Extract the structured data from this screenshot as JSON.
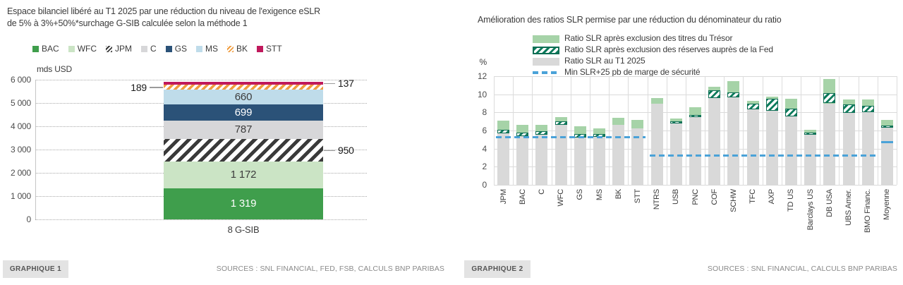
{
  "left_panel": {
    "title_line1": "Espace bilanciel libéré au T1 2025 par une réduction du niveau de l'exigence eSLR",
    "title_line2": "de 5% à 3%+50%*surchage G-SIB calculée selon la méthode 1",
    "footer_badge": "GRAPHIQUE 1",
    "sources": "SOURCES : SNL FINANCIAL, FED, FSB, CALCULS BNP PARIBAS"
  },
  "right_panel": {
    "footer_badge": "GRAPHIQUE 2",
    "sources": "SOURCES : SNL FINANCIAL, CALCULS BNP PARIBAS"
  },
  "colors": {
    "bac_green": "#3f9e4c",
    "wfc_light_green": "#cbe4c5",
    "c_gray": "#d7d7d9",
    "gs_navy": "#2b5278",
    "ms_light_blue": "#bfdcea",
    "stt_magenta": "#c0195c",
    "bk_orange": "#f09c3e",
    "jpm_hatch": "#3a3a3a",
    "slr_light_green": "#a6d3a8",
    "slr_dark_green": "#0d7b5c",
    "slr_gray": "#d9d9d9",
    "min_blue": "#4aa2d8"
  },
  "chart_data": [
    {
      "type": "bar",
      "subtype": "stacked-single-column",
      "title": "Espace bilanciel libéré au T1 2025 par une réduction du niveau de l'exigence eSLR de 5% à 3%+50%*surchage G-SIB calculée selon la méthode 1",
      "ylabel": "mds USD",
      "ylim": [
        0,
        6000
      ],
      "y_ticks": [
        "6 000",
        "5 000",
        "4 000",
        "3 000",
        "2 000",
        "1 000",
        "0"
      ],
      "categories": [
        "8 G-SIB"
      ],
      "grid": "dotted-horizontal",
      "legend_position": "top",
      "segments": [
        {
          "name": "BAC",
          "value": 1319,
          "label": "1 319",
          "color": "#3f9e4c",
          "pattern": "solid",
          "label_color": "#ffffff",
          "label_position": "inside"
        },
        {
          "name": "WFC",
          "value": 1172,
          "label": "1 172",
          "color": "#cbe4c5",
          "pattern": "solid",
          "label_color": "#3c3c3c",
          "label_position": "inside"
        },
        {
          "name": "JPM",
          "value": 950,
          "label": "950",
          "color": "#3a3a3a",
          "pattern": "hatch-dark",
          "label_color": "#1a1a1a",
          "label_position": "callout-right"
        },
        {
          "name": "C",
          "value": 787,
          "label": "787",
          "color": "#d7d7d9",
          "pattern": "solid",
          "label_color": "#3c3c3c",
          "label_position": "inside"
        },
        {
          "name": "GS",
          "value": 699,
          "label": "699",
          "color": "#2b5278",
          "pattern": "solid",
          "label_color": "#ffffff",
          "label_position": "inside"
        },
        {
          "name": "MS",
          "value": 660,
          "label": "660",
          "color": "#bfdcea",
          "pattern": "solid",
          "label_color": "#3c3c3c",
          "label_position": "inside"
        },
        {
          "name": "BK",
          "value": 189,
          "label": "189",
          "color": "#f09c3e",
          "pattern": "hatch-orange",
          "label_color": "#1a1a1a",
          "label_position": "callout-left"
        },
        {
          "name": "STT",
          "value": 137,
          "label": "137",
          "color": "#c0195c",
          "pattern": "solid",
          "label_color": "#1a1a1a",
          "label_position": "callout-right"
        }
      ]
    },
    {
      "type": "bar",
      "subtype": "overlayed-columns-with-threshold-line",
      "title": "Amélioration des ratios SLR permise par une réduction du dénominateur du ratio",
      "ylabel": "%",
      "ylim": [
        0,
        12
      ],
      "y_ticks": [
        "12",
        "10",
        "8",
        "6",
        "4",
        "2",
        "0"
      ],
      "grid": "both",
      "legend_position": "top-left",
      "categories": [
        "JPM",
        "BAC",
        "C",
        "WFC",
        "GS",
        "MS",
        "BK",
        "STT",
        "NTRS",
        "USB",
        "PNC",
        "COF",
        "SCHW",
        "TFC",
        "AXP",
        "TD US",
        "Barclays US",
        "DB USA",
        "UBS Amer.",
        "BMO Financ.",
        "Moyenne"
      ],
      "series": [
        {
          "name": "Ratio SLR au T1 2025",
          "role": "current",
          "style": "solid-gray",
          "values": [
            5.7,
            5.35,
            5.5,
            6.6,
            5.2,
            5.3,
            6.6,
            6.2,
            9.0,
            6.8,
            7.5,
            9.6,
            9.65,
            8.35,
            8.2,
            7.55,
            5.55,
            9.0,
            7.95,
            8.05,
            6.3
          ]
        },
        {
          "name": "Ratio SLR après exclusion des réserves auprès de la Fed",
          "role": "fed_excluded",
          "style": "hatch-dark-green",
          "values": [
            6.1,
            5.8,
            5.9,
            7.0,
            5.6,
            5.6,
            6.6,
            6.2,
            9.0,
            7.0,
            7.75,
            10.45,
            10.2,
            9.0,
            9.5,
            8.45,
            5.75,
            10.15,
            8.85,
            8.7,
            6.55
          ]
        },
        {
          "name": "Ratio SLR après exclusion des titres du Trésor",
          "role": "treasury_excluded",
          "style": "solid-light-green",
          "values": [
            7.1,
            6.6,
            6.6,
            7.45,
            6.5,
            6.2,
            7.4,
            7.15,
            9.55,
            7.35,
            8.6,
            10.8,
            11.45,
            9.3,
            9.75,
            9.5,
            6.1,
            11.65,
            9.45,
            9.45,
            7.2
          ]
        }
      ],
      "min_line": {
        "label": "Min SLR+25 pb de marge de sécurité",
        "style": "dashed-blue",
        "segments": [
          {
            "from": 0,
            "to": 7,
            "value": 5.25
          },
          {
            "from": 8,
            "to": 19,
            "value": 3.25
          }
        ],
        "marker": {
          "index": 20,
          "value": 4.7
        }
      }
    }
  ]
}
